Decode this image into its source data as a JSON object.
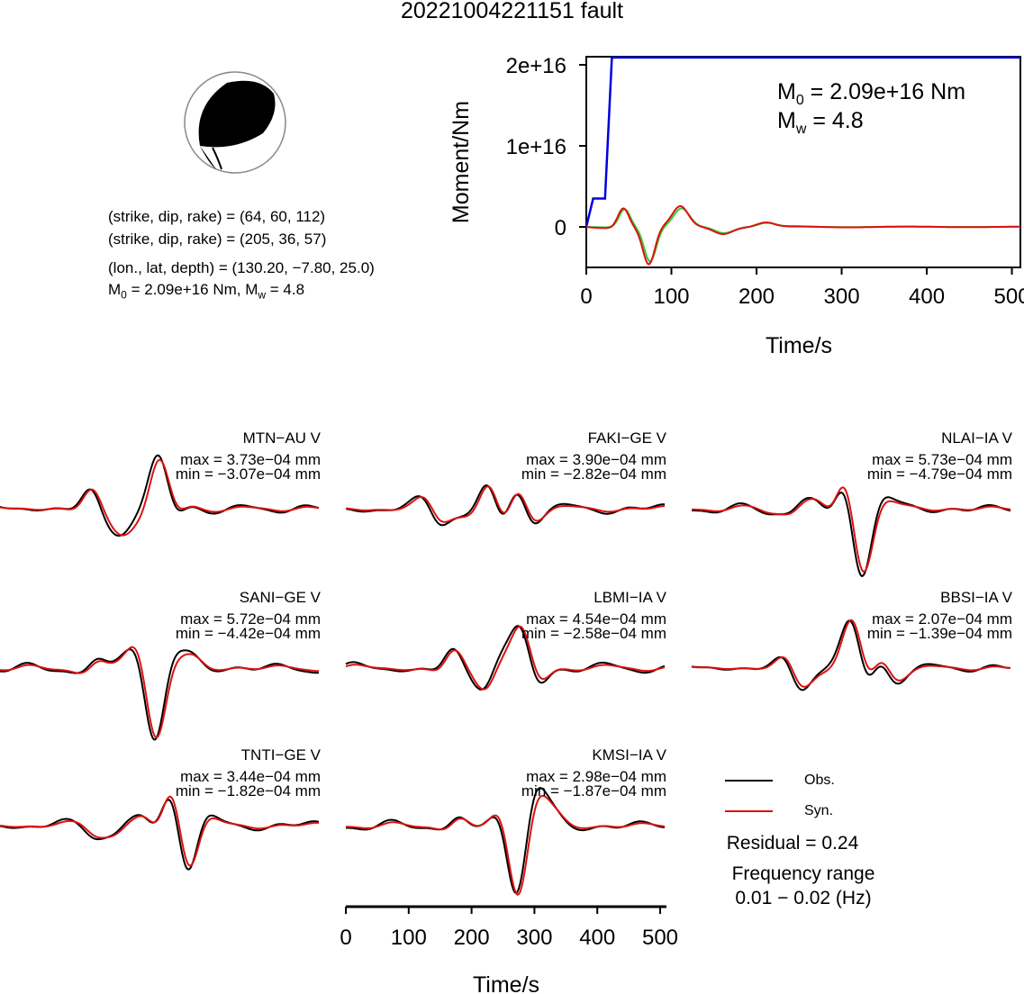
{
  "title": "20221004221151 fault",
  "mechanism": {
    "line1": "(strike, dip, rake) = (64, 60, 112)",
    "line2": "(strike, dip, rake) = (205, 36, 57)",
    "line3": "(lon., lat, depth) = (130.20, −7.80, 25.0)",
    "m0_prefix": "M",
    "m0_sub": "0",
    "m0_rest": " = 2.09e+16 Nm, M",
    "mw_sub": "w",
    "mw_rest": " = 4.8"
  },
  "moment_plot": {
    "ylabel": "Moment/Nm",
    "xlabel": "Time/s",
    "yticks": [
      "0",
      "1e+16",
      "2e+16"
    ],
    "xticks": [
      "0",
      "100",
      "200",
      "300",
      "400",
      "500"
    ],
    "annot_m0_base": "M",
    "annot_m0_sub": "0",
    "annot_m0_rest": " = 2.09e+16 Nm",
    "annot_mw_base": "M",
    "annot_mw_sub": "w",
    "annot_mw_rest": " = 4.8",
    "colors": {
      "moment": "#0000dd",
      "rate_green": "#33cc33",
      "rate_red": "#dd1111"
    }
  },
  "chart_data": [
    {
      "type": "line",
      "name": "cumulative-moment",
      "xlabel": "Time/s",
      "ylabel": "Moment/Nm",
      "xlim": [
        0,
        510
      ],
      "ylim": [
        -5000000000000000.0,
        2.1e+16
      ],
      "x": [
        0,
        8,
        22,
        30,
        510
      ],
      "series": [
        {
          "values": [
            0,
            3500000000000000.0,
            3500000000000000.0,
            2.09e+16,
            2.09e+16
          ]
        }
      ]
    },
    {
      "type": "line",
      "name": "waveforms",
      "xlabel": "Time/s",
      "xlim": [
        0,
        510
      ],
      "stations": [
        {
          "label": "MTN−AU V",
          "max": "max = 3.73e−04 mm",
          "min": "min = −3.07e−04 mm"
        },
        {
          "label": "FAKI−GE V",
          "max": "max = 3.90e−04 mm",
          "min": "min = −2.82e−04 mm"
        },
        {
          "label": "NLAI−IA V",
          "max": "max = 5.73e−04 mm",
          "min": "min = −4.79e−04 mm"
        },
        {
          "label": "SANI−GE V",
          "max": "max = 5.72e−04 mm",
          "min": "min = −4.42e−04 mm"
        },
        {
          "label": "LBMI−IA V",
          "max": "max = 4.54e−04 mm",
          "min": "min = −2.58e−04 mm"
        },
        {
          "label": "BBSI−IA V",
          "max": "max = 2.07e−04 mm",
          "min": "min = −1.39e−04 mm"
        },
        {
          "label": "TNTI−GE V",
          "max": "max = 3.44e−04 mm",
          "min": "min = −1.82e−04 mm"
        },
        {
          "label": "KMSI−IA V",
          "max": "max = 2.98e−04 mm",
          "min": "min = −1.87e−04 mm"
        }
      ]
    }
  ],
  "waveform_axis": {
    "xlabel": "Time/s",
    "xticks": [
      "0",
      "100",
      "200",
      "300",
      "400",
      "500"
    ]
  },
  "legend": {
    "obs": "Obs.",
    "syn": "Syn.",
    "obs_color": "#000000",
    "syn_color": "#dd1111"
  },
  "summary": {
    "residual": "Residual = 0.24",
    "freq_label": "Frequency range",
    "freq_value": "0.01 − 0.02 (Hz)"
  }
}
